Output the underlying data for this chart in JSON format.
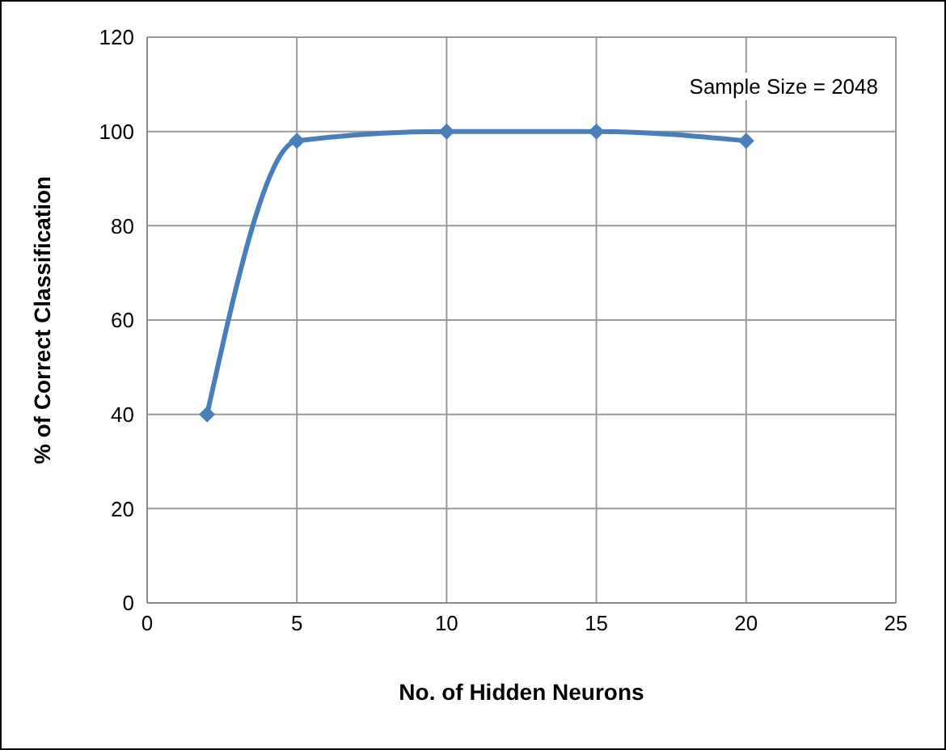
{
  "chart_data": {
    "type": "line",
    "xlabel": "No. of Hidden Neurons",
    "ylabel": "% of Correct Classification",
    "x": [
      2,
      5,
      10,
      15,
      20
    ],
    "series": [
      {
        "color": "#4a7ebb",
        "values": [
          40,
          98,
          100,
          100,
          98
        ]
      }
    ],
    "xlim": [
      0,
      25
    ],
    "xticks": [
      0,
      5,
      10,
      15,
      20,
      25
    ],
    "ylim": [
      0,
      120
    ],
    "yticks": [
      0,
      20,
      40,
      60,
      80,
      100,
      120
    ],
    "grid": true,
    "marker": "diamond",
    "annotations": [
      "Sample Size = 2048"
    ]
  }
}
